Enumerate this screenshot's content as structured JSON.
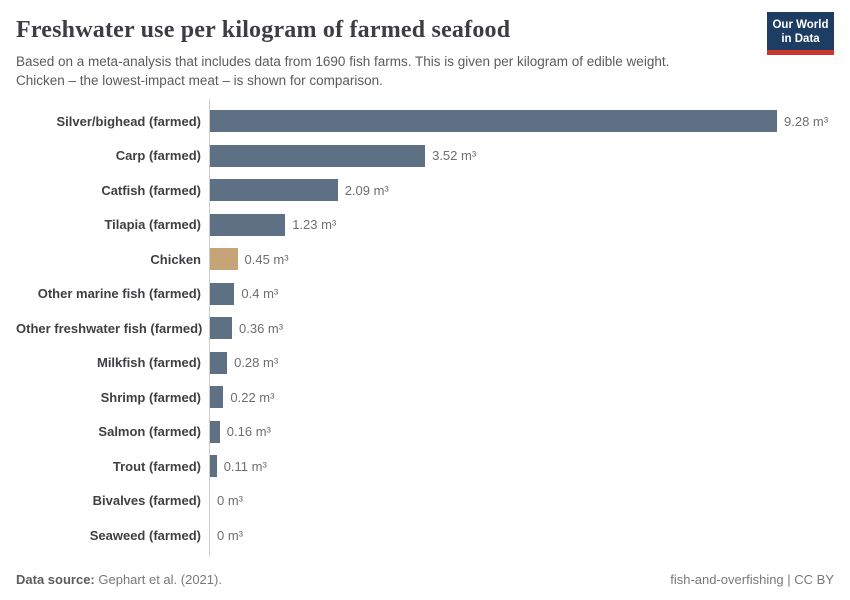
{
  "header": {
    "title": "Freshwater use per kilogram of farmed seafood",
    "subtitle_lines": [
      "Based on a meta-analysis that includes data from 1690 fish farms. This is given per kilogram of edible weight.",
      "Chicken – the lowest-impact meat – is shown for comparison."
    ],
    "logo": {
      "line1": "Our World",
      "line2": "in Data",
      "bg_color": "#1d3d63",
      "accent_color": "#c8362c"
    }
  },
  "chart_data": {
    "type": "bar",
    "orientation": "horizontal",
    "title": "Freshwater use per kilogram of farmed seafood",
    "unit": "m³",
    "xlabel": "",
    "ylabel": "",
    "xlim": [
      0,
      9.28
    ],
    "grid": false,
    "legend": false,
    "categories": [
      "Silver/bighead (farmed)",
      "Carp (farmed)",
      "Catfish (farmed)",
      "Tilapia (farmed)",
      "Chicken",
      "Other marine fish (farmed)",
      "Other freshwater fish (farmed)",
      "Milkfish (farmed)",
      "Shrimp (farmed)",
      "Salmon (farmed)",
      "Trout (farmed)",
      "Bivalves (farmed)",
      "Seaweed (farmed)"
    ],
    "values": [
      9.28,
      3.52,
      2.09,
      1.23,
      0.45,
      0.4,
      0.36,
      0.28,
      0.22,
      0.16,
      0.11,
      0,
      0
    ],
    "value_labels": [
      "9.28 m³",
      "3.52 m³",
      "2.09 m³",
      "1.23 m³",
      "0.45 m³",
      "0.4 m³",
      "0.36 m³",
      "0.28 m³",
      "0.22 m³",
      "0.16 m³",
      "0.11 m³",
      "0 m³",
      "0 m³"
    ],
    "bar_color": "#5e7083",
    "highlight_index": 4,
    "highlight_color": "#c6a478"
  },
  "footer": {
    "source_label": "Data source:",
    "source_value": "Gephart et al. (2021).",
    "credit": "fish-and-overfishing | CC BY"
  }
}
